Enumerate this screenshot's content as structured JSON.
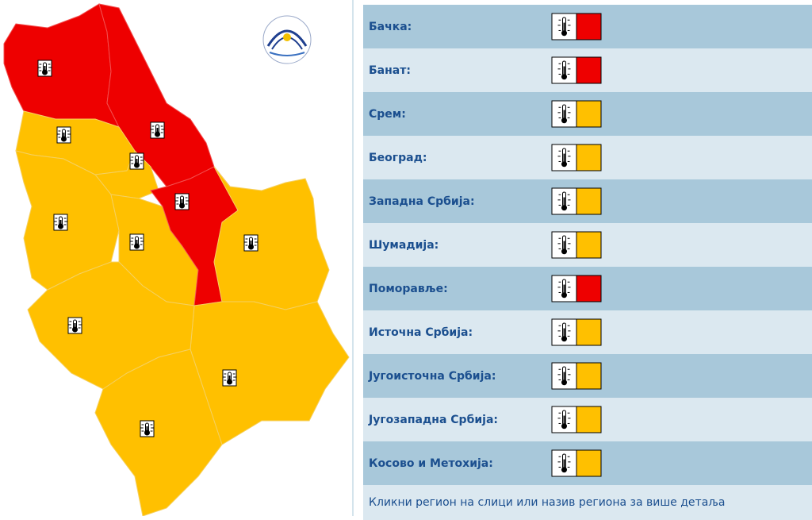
{
  "regions": [
    {
      "name": "Бачка:",
      "color": "#ee0000"
    },
    {
      "name": "Банат:",
      "color": "#ee0000"
    },
    {
      "name": "Срем:",
      "color": "#ffc000"
    },
    {
      "name": "Београд:",
      "color": "#ffc000"
    },
    {
      "name": "Западна Србија:",
      "color": "#ffc000"
    },
    {
      "name": "Шумадија:",
      "color": "#ffc000"
    },
    {
      "name": "Поморавље:",
      "color": "#ee0000"
    },
    {
      "name": "Источна Србија:",
      "color": "#ffc000"
    },
    {
      "name": "Југоисточна Србија:",
      "color": "#ffc000"
    },
    {
      "name": "Југозападна Србија:",
      "color": "#ffc000"
    },
    {
      "name": "Косово и Метохија:",
      "color": "#ffc000"
    }
  ],
  "footer": "Кликни регион на слици или назив региона за више детаља"
}
